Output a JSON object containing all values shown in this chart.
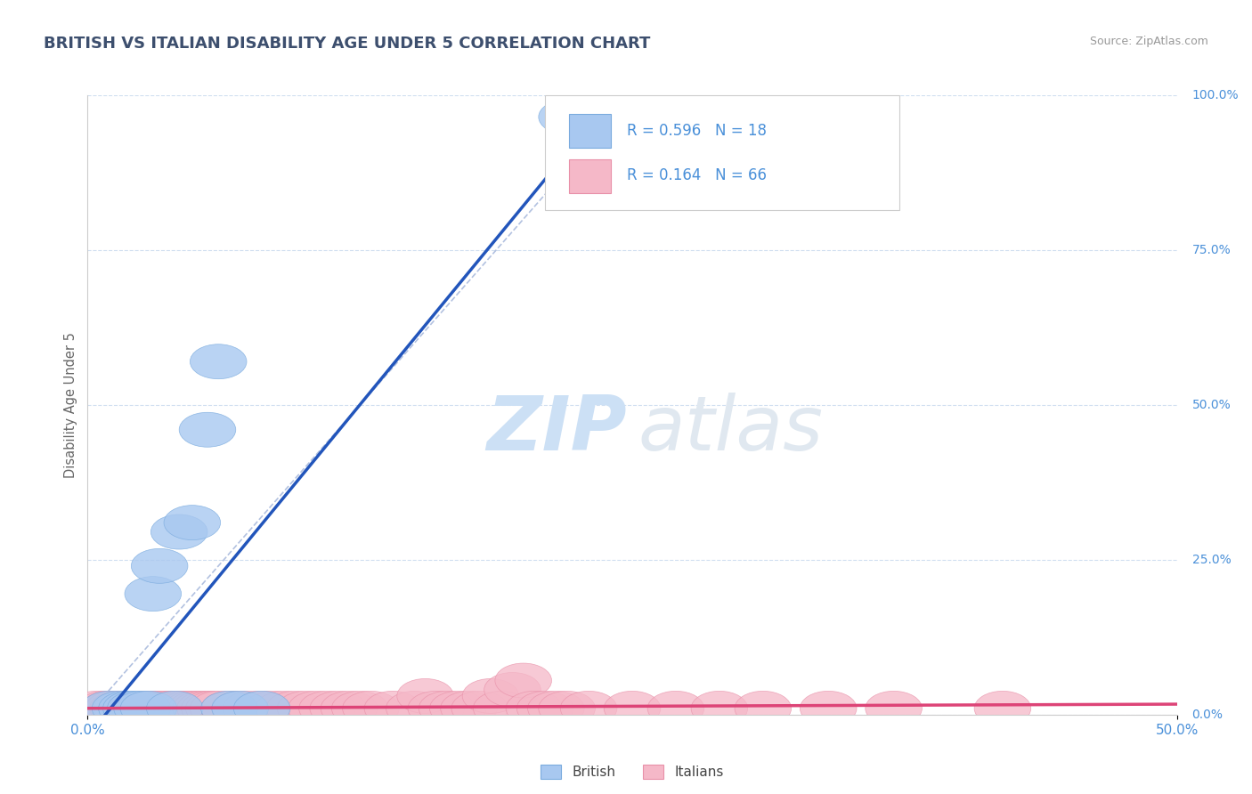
{
  "title": "BRITISH VS ITALIAN DISABILITY AGE UNDER 5 CORRELATION CHART",
  "source": "Source: ZipAtlas.com",
  "ylabel": "Disability Age Under 5",
  "xlim": [
    0.0,
    0.5
  ],
  "ylim": [
    0.0,
    1.0
  ],
  "xtick_left_label": "0.0%",
  "xtick_right_label": "50.0%",
  "ytick_right_labels": [
    "0.0%",
    "25.0%",
    "50.0%",
    "75.0%",
    "100.0%"
  ],
  "ytick_right_values": [
    0.0,
    0.25,
    0.5,
    0.75,
    1.0
  ],
  "title_color": "#3d4f6e",
  "title_fontsize": 13,
  "axis_tick_color": "#4a90d9",
  "source_color": "#999999",
  "legend_r_british": "R = 0.596",
  "legend_n_british": "N = 18",
  "legend_r_italian": "R = 0.164",
  "legend_n_italian": "N = 66",
  "british_fill_color": "#a8c8f0",
  "british_edge_color": "#7aabde",
  "italian_fill_color": "#f5b8c8",
  "italian_edge_color": "#e890a8",
  "british_line_color": "#2255bb",
  "italian_line_color": "#dd4477",
  "diagonal_color": "#aabbdd",
  "grid_color": "#d0dff0",
  "background_color": "#ffffff",
  "british_points": [
    [
      0.01,
      0.01
    ],
    [
      0.015,
      0.01
    ],
    [
      0.018,
      0.01
    ],
    [
      0.02,
      0.01
    ],
    [
      0.022,
      0.01
    ],
    [
      0.025,
      0.01
    ],
    [
      0.028,
      0.01
    ],
    [
      0.03,
      0.195
    ],
    [
      0.033,
      0.24
    ],
    [
      0.04,
      0.01
    ],
    [
      0.042,
      0.295
    ],
    [
      0.048,
      0.31
    ],
    [
      0.055,
      0.46
    ],
    [
      0.06,
      0.57
    ],
    [
      0.065,
      0.01
    ],
    [
      0.07,
      0.01
    ],
    [
      0.08,
      0.01
    ],
    [
      0.22,
      0.965
    ]
  ],
  "italian_points": [
    [
      0.004,
      0.01
    ],
    [
      0.008,
      0.01
    ],
    [
      0.01,
      0.01
    ],
    [
      0.012,
      0.01
    ],
    [
      0.014,
      0.01
    ],
    [
      0.016,
      0.01
    ],
    [
      0.018,
      0.01
    ],
    [
      0.02,
      0.01
    ],
    [
      0.022,
      0.01
    ],
    [
      0.024,
      0.01
    ],
    [
      0.026,
      0.01
    ],
    [
      0.028,
      0.01
    ],
    [
      0.03,
      0.01
    ],
    [
      0.032,
      0.01
    ],
    [
      0.034,
      0.01
    ],
    [
      0.036,
      0.01
    ],
    [
      0.038,
      0.01
    ],
    [
      0.04,
      0.01
    ],
    [
      0.042,
      0.01
    ],
    [
      0.044,
      0.01
    ],
    [
      0.046,
      0.01
    ],
    [
      0.048,
      0.01
    ],
    [
      0.05,
      0.01
    ],
    [
      0.052,
      0.01
    ],
    [
      0.054,
      0.01
    ],
    [
      0.056,
      0.01
    ],
    [
      0.058,
      0.01
    ],
    [
      0.06,
      0.01
    ],
    [
      0.065,
      0.01
    ],
    [
      0.07,
      0.01
    ],
    [
      0.075,
      0.01
    ],
    [
      0.08,
      0.01
    ],
    [
      0.085,
      0.01
    ],
    [
      0.09,
      0.01
    ],
    [
      0.095,
      0.01
    ],
    [
      0.1,
      0.01
    ],
    [
      0.105,
      0.01
    ],
    [
      0.11,
      0.01
    ],
    [
      0.115,
      0.01
    ],
    [
      0.12,
      0.01
    ],
    [
      0.125,
      0.01
    ],
    [
      0.13,
      0.01
    ],
    [
      0.14,
      0.01
    ],
    [
      0.15,
      0.01
    ],
    [
      0.155,
      0.03
    ],
    [
      0.16,
      0.01
    ],
    [
      0.165,
      0.01
    ],
    [
      0.17,
      0.01
    ],
    [
      0.175,
      0.01
    ],
    [
      0.18,
      0.01
    ],
    [
      0.185,
      0.03
    ],
    [
      0.19,
      0.01
    ],
    [
      0.195,
      0.04
    ],
    [
      0.2,
      0.055
    ],
    [
      0.205,
      0.01
    ],
    [
      0.21,
      0.01
    ],
    [
      0.215,
      0.01
    ],
    [
      0.22,
      0.01
    ],
    [
      0.23,
      0.01
    ],
    [
      0.25,
      0.01
    ],
    [
      0.27,
      0.01
    ],
    [
      0.29,
      0.01
    ],
    [
      0.31,
      0.01
    ],
    [
      0.34,
      0.01
    ],
    [
      0.37,
      0.01
    ],
    [
      0.42,
      0.01
    ]
  ],
  "watermark_zip_color": "#cce0f5",
  "watermark_atlas_color": "#e0e8f0",
  "bottom_legend_labels": [
    "British",
    "Italians"
  ]
}
